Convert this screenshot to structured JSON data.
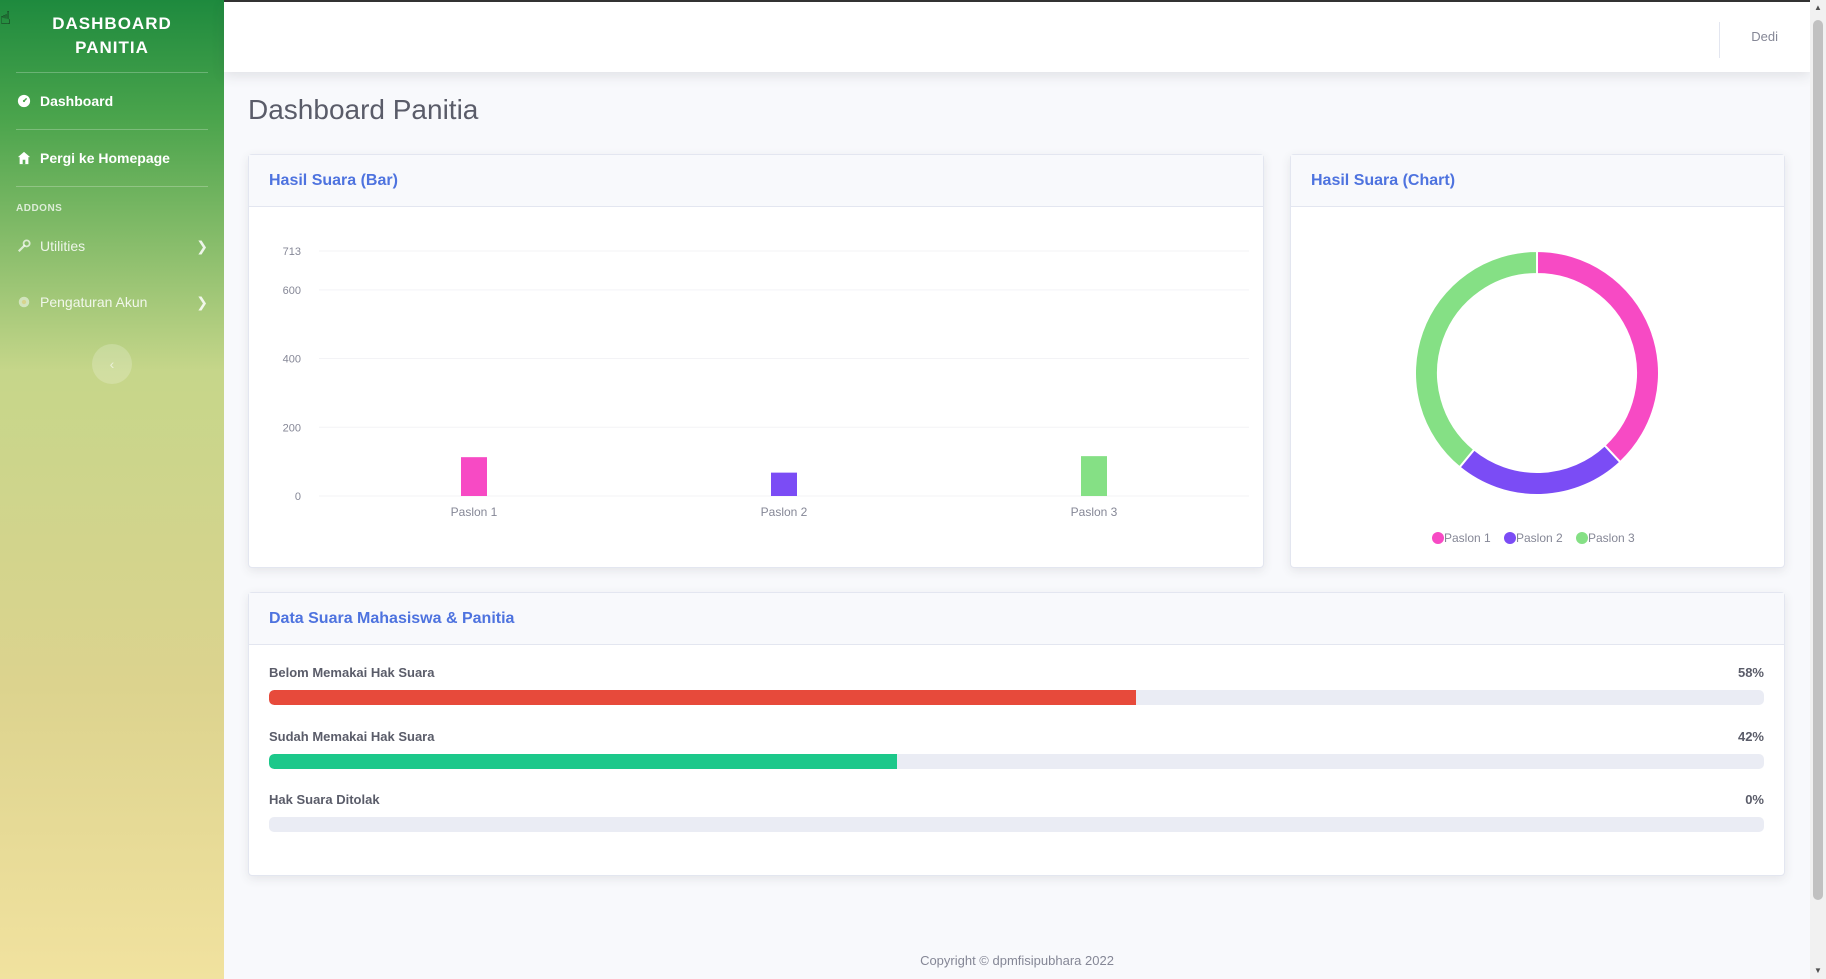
{
  "sidebar": {
    "brand": "DASHBOARD PANITIA",
    "items": [
      {
        "label": "Dashboard",
        "icon": "speedometer-icon"
      },
      {
        "label": "Pergi ke Homepage",
        "icon": "home-icon"
      }
    ],
    "heading": "ADDONS",
    "addons": [
      {
        "label": "Utilities",
        "icon": "wrench-icon"
      },
      {
        "label": "Pengaturan Akun",
        "icon": "gear-icon"
      }
    ]
  },
  "topbar": {
    "user": "Dedi"
  },
  "page": {
    "title": "Dashboard Panitia"
  },
  "bar_card": {
    "title": "Hasil Suara (Bar)"
  },
  "donut_card": {
    "title": "Hasil Suara (Chart)"
  },
  "progress_card": {
    "title": "Data Suara Mahasiswa & Panitia",
    "rows": [
      {
        "label": "Belom Memakai Hak Suara",
        "percent_text": "58%",
        "value": 58,
        "color": "#e74a3b"
      },
      {
        "label": "Sudah Memakai Hak Suara",
        "percent_text": "42%",
        "value": 42,
        "color": "#1cc88a"
      },
      {
        "label": "Hak Suara Ditolak",
        "percent_text": "0%",
        "value": 0,
        "color": "#858796"
      }
    ]
  },
  "footer": {
    "text": "Copyright © dpmfisipubhara 2022"
  },
  "chart_data": [
    {
      "type": "bar",
      "title": "Hasil Suara (Bar)",
      "categories": [
        "Paslon 1",
        "Paslon 2",
        "Paslon 3"
      ],
      "values": [
        113,
        68,
        116
      ],
      "colors": [
        "#f74ac4",
        "#7b4cf5",
        "#85e085"
      ],
      "ylim": [
        0,
        713
      ],
      "yticks": [
        0,
        200,
        400,
        600,
        713
      ],
      "ytick_labels": [
        "0",
        "200",
        "400",
        "600",
        "713"
      ]
    },
    {
      "type": "pie",
      "title": "Hasil Suara (Chart)",
      "categories": [
        "Paslon 1",
        "Paslon 2",
        "Paslon 3"
      ],
      "values": [
        113,
        68,
        116
      ],
      "colors": [
        "#f74ac4",
        "#7b4cf5",
        "#85e085"
      ],
      "legend": "bottom"
    }
  ]
}
